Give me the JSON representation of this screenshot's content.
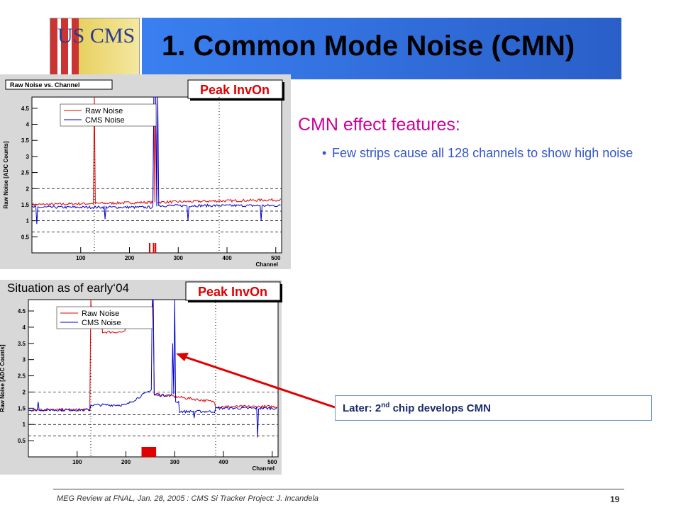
{
  "header": {
    "title": "1. Common Mode Noise (CMN)",
    "logo": "US CMS"
  },
  "plots": [
    {
      "title": "Raw Noise vs. Channel",
      "tag": "Peak InvOn",
      "ylabel": "Raw Noise [ADC Counts]",
      "xlabel": "Channel",
      "yticks": [
        "4.5",
        "4",
        "3.5",
        "3",
        "2.5",
        "2",
        "1.5",
        "1",
        "0.5"
      ],
      "xticks": [
        "100",
        "200",
        "300",
        "400",
        "500"
      ],
      "legend": [
        "Raw Noise",
        "CMS Noise"
      ]
    },
    {
      "caption": "Situation as of early‘04",
      "tag": "Peak InvOn",
      "ylabel": "Raw Noise [ADC Counts]",
      "xlabel": "Channel",
      "yticks": [
        "4.5",
        "4",
        "3.5",
        "3",
        "2.5",
        "2",
        "1.5",
        "1",
        "0.5"
      ],
      "xticks": [
        "100",
        "200",
        "300",
        "400",
        "500"
      ],
      "legend": [
        "Raw Noise",
        "CMS Noise"
      ]
    }
  ],
  "body": {
    "heading": "CMN effect features:",
    "bullets": [
      "Few strips cause all 128 channels to show high noise"
    ]
  },
  "callout": {
    "pre": "Later:  2",
    "sup": "nd",
    "post": " chip develops CMN"
  },
  "footer": {
    "text": "MEG Review at FNAL, Jan. 28, 2005 : CMS Si Tracker Project: J. Incandela",
    "page": "19"
  }
}
